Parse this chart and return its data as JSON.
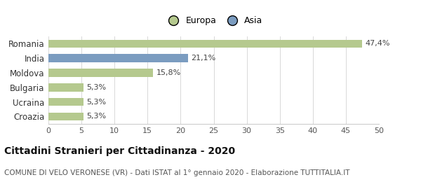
{
  "categories": [
    "Romania",
    "India",
    "Moldova",
    "Bulgaria",
    "Ucraina",
    "Croazia"
  ],
  "values": [
    47.4,
    21.1,
    15.8,
    5.3,
    5.3,
    5.3
  ],
  "labels": [
    "47,4%",
    "21,1%",
    "15,8%",
    "5,3%",
    "5,3%",
    "5,3%"
  ],
  "bar_colors": [
    "#b5c98e",
    "#7b9cc0",
    "#b5c98e",
    "#b5c98e",
    "#b5c98e",
    "#b5c98e"
  ],
  "legend_labels": [
    "Europa",
    "Asia"
  ],
  "legend_colors": [
    "#b5c98e",
    "#7b9cc0"
  ],
  "xlim": [
    0,
    50
  ],
  "xticks": [
    0,
    5,
    10,
    15,
    20,
    25,
    30,
    35,
    40,
    45,
    50
  ],
  "title": "Cittadini Stranieri per Cittadinanza - 2020",
  "subtitle": "COMUNE DI VELO VERONESE (VR) - Dati ISTAT al 1° gennaio 2020 - Elaborazione TUTTITALIA.IT",
  "background_color": "#ffffff",
  "bar_height": 0.55,
  "label_fontsize": 8,
  "ytick_fontsize": 8.5,
  "xtick_fontsize": 8,
  "title_fontsize": 10,
  "subtitle_fontsize": 7.5
}
